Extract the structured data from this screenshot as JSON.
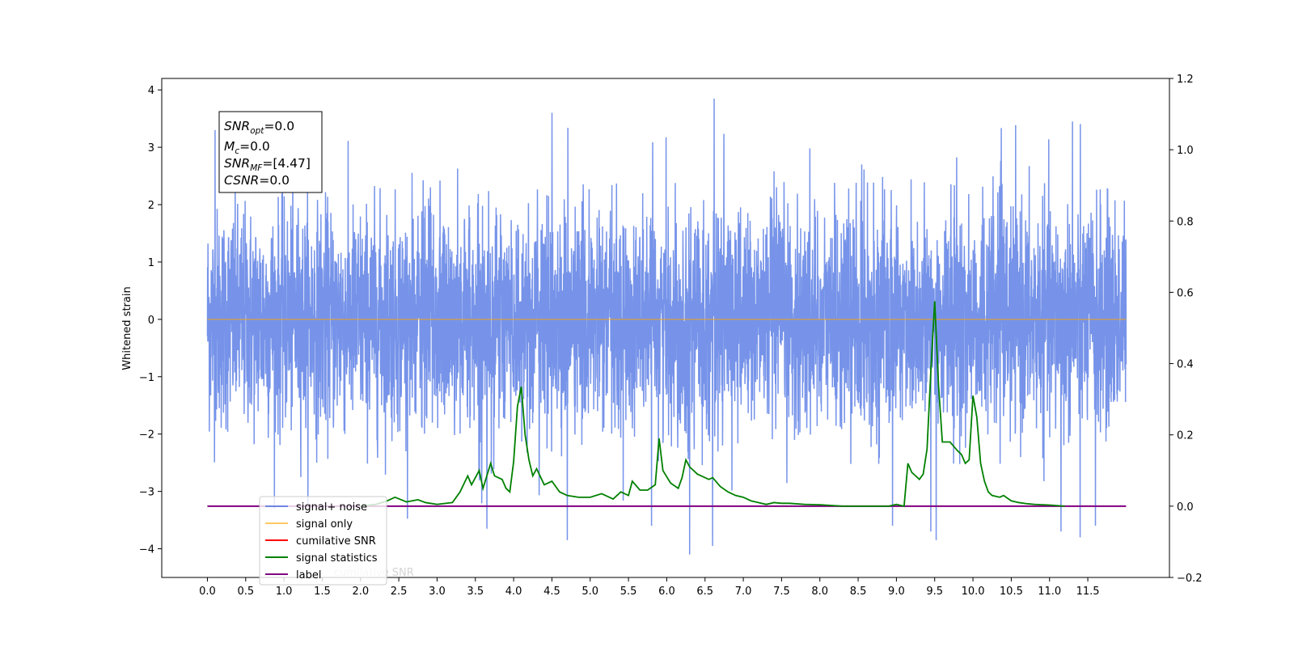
{
  "chart_data": {
    "type": "line",
    "title": "",
    "xlabel": "",
    "ylabel": "Whitened strain",
    "xlim": [
      -0.5965,
      12.5665
    ],
    "ylim": [
      -4.5,
      4.2
    ],
    "y2lim": [
      -0.2,
      1.2
    ],
    "grid": false,
    "legend_placement": "lower-left",
    "x_ticks": [
      "0.0",
      "0.5",
      "1.0",
      "1.5",
      "2.0",
      "2.5",
      "3.0",
      "3.5",
      "4.0",
      "4.5",
      "5.0",
      "5.5",
      "6.0",
      "6.5",
      "7.0",
      "7.5",
      "8.0",
      "8.5",
      "9.0",
      "9.5",
      "10.0",
      "10.5",
      "11.0",
      "11.5"
    ],
    "y_ticks": [
      "4",
      "3",
      "2",
      "1",
      "0",
      "−1",
      "−2",
      "−3",
      "−4"
    ],
    "y2_ticks": [
      "1.2",
      "1.0",
      "0.8",
      "0.6",
      "0.4",
      "0.2",
      "0.0",
      "−0.2"
    ],
    "stats_box": {
      "line1_base": "SNR",
      "line1_sub": "opt",
      "line1_value": "=0.0",
      "line2_base": "M",
      "line2_sub": "c",
      "line2_value": "=0.0",
      "line3_base": "SNR",
      "line3_sub": "MF",
      "line3_value": "=[4.47]",
      "line4_base": "CSNR",
      "line4_value": "=0.0"
    },
    "legend": {
      "entries": [
        {
          "label": "signal+ noise",
          "color": "#4169e1"
        },
        {
          "label": "signal only",
          "color": "#ffa500"
        },
        {
          "label": "cumilative SNR",
          "color": "#ff0000"
        },
        {
          "label": "signal statistics",
          "color": "#008000"
        },
        {
          "label": "label",
          "color": "#800080"
        }
      ],
      "ghost_text": "cumilative SNR"
    },
    "series": [
      {
        "name": "signal+ noise",
        "axis": "left",
        "color": "#4169e1",
        "x_range": [
          0.0,
          12.0
        ],
        "amplitude_envelope": [
          -4.1,
          3.85
        ],
        "notable_peaks": [
          {
            "x": 6.62,
            "y": 3.85
          },
          {
            "x": 0.1,
            "y": 3.3
          },
          {
            "x": 4.5,
            "y": 3.6
          },
          {
            "x": 11.3,
            "y": 3.45
          },
          {
            "x": 6.3,
            "y": -4.1
          },
          {
            "x": 6.6,
            "y": -3.95
          },
          {
            "x": 4.7,
            "y": -3.85
          },
          {
            "x": 9.52,
            "y": -3.85
          },
          {
            "x": 11.4,
            "y": -3.8
          },
          {
            "x": 3.65,
            "y": -3.65
          },
          {
            "x": 9.45,
            "y": -3.7
          },
          {
            "x": 11.15,
            "y": -3.7
          },
          {
            "x": 8.95,
            "y": -3.6
          },
          {
            "x": 11.6,
            "y": -3.6
          },
          {
            "x": 5.8,
            "y": -3.6
          }
        ]
      },
      {
        "name": "signal only",
        "axis": "left",
        "color": "#ffa500",
        "x": [
          0.0,
          12.0
        ],
        "y": [
          0.0,
          0.0
        ]
      },
      {
        "name": "signal statistics",
        "axis": "right",
        "color": "#008000",
        "x": [
          2.0,
          2.2,
          2.35,
          2.45,
          2.6,
          2.75,
          2.85,
          3.0,
          3.2,
          3.3,
          3.4,
          3.45,
          3.55,
          3.6,
          3.7,
          3.75,
          3.85,
          3.9,
          3.95,
          4.0,
          4.05,
          4.1,
          4.15,
          4.2,
          4.25,
          4.3,
          4.4,
          4.5,
          4.6,
          4.7,
          4.85,
          5.0,
          5.15,
          5.3,
          5.4,
          5.5,
          5.55,
          5.65,
          5.75,
          5.85,
          5.9,
          5.95,
          6.05,
          6.15,
          6.2,
          6.25,
          6.3,
          6.4,
          6.55,
          6.6,
          6.7,
          6.8,
          6.9,
          7.0,
          7.1,
          7.2,
          7.3,
          7.4,
          7.5,
          7.6,
          7.8,
          8.0,
          8.3,
          8.6,
          8.9,
          9.0,
          9.1,
          9.15,
          9.2,
          9.3,
          9.35,
          9.4,
          9.45,
          9.5,
          9.55,
          9.6,
          9.7,
          9.8,
          9.85,
          9.9,
          9.95,
          10.0,
          10.05,
          10.1,
          10.15,
          10.2,
          10.25,
          10.35,
          10.4,
          10.5,
          10.6,
          10.7,
          10.8,
          11.0,
          11.2
        ],
        "y": [
          0.0,
          0.005,
          0.015,
          0.025,
          0.012,
          0.018,
          0.01,
          0.005,
          0.01,
          0.04,
          0.085,
          0.06,
          0.1,
          0.05,
          0.12,
          0.085,
          0.075,
          0.05,
          0.04,
          0.125,
          0.28,
          0.335,
          0.2,
          0.13,
          0.085,
          0.105,
          0.06,
          0.07,
          0.04,
          0.03,
          0.025,
          0.025,
          0.035,
          0.02,
          0.04,
          0.03,
          0.07,
          0.045,
          0.045,
          0.06,
          0.19,
          0.1,
          0.065,
          0.05,
          0.08,
          0.13,
          0.11,
          0.09,
          0.075,
          0.08,
          0.055,
          0.04,
          0.03,
          0.025,
          0.015,
          0.01,
          0.005,
          0.01,
          0.008,
          0.008,
          0.005,
          0.004,
          0.0,
          0.0,
          0.0,
          0.005,
          0.0,
          0.12,
          0.095,
          0.075,
          0.09,
          0.16,
          0.38,
          0.575,
          0.34,
          0.18,
          0.18,
          0.155,
          0.145,
          0.12,
          0.13,
          0.31,
          0.25,
          0.12,
          0.07,
          0.04,
          0.03,
          0.025,
          0.03,
          0.015,
          0.01,
          0.007,
          0.005,
          0.003,
          0.0
        ]
      },
      {
        "name": "label",
        "axis": "right",
        "color": "#800080",
        "x": [
          0.0,
          12.0
        ],
        "y": [
          0.0,
          0.0
        ]
      }
    ]
  }
}
